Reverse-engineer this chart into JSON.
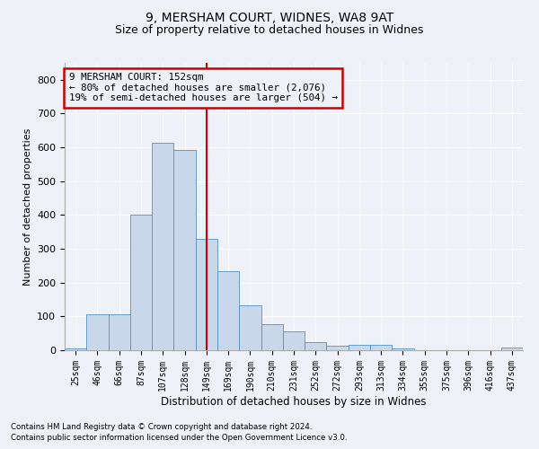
{
  "title1": "9, MERSHAM COURT, WIDNES, WA8 9AT",
  "title2": "Size of property relative to detached houses in Widnes",
  "xlabel": "Distribution of detached houses by size in Widnes",
  "ylabel": "Number of detached properties",
  "footnote1": "Contains HM Land Registry data © Crown copyright and database right 2024.",
  "footnote2": "Contains public sector information licensed under the Open Government Licence v3.0.",
  "bar_labels": [
    "25sqm",
    "46sqm",
    "66sqm",
    "87sqm",
    "107sqm",
    "128sqm",
    "149sqm",
    "169sqm",
    "190sqm",
    "210sqm",
    "231sqm",
    "252sqm",
    "272sqm",
    "293sqm",
    "313sqm",
    "334sqm",
    "355sqm",
    "375sqm",
    "396sqm",
    "416sqm",
    "437sqm"
  ],
  "bar_values": [
    5,
    107,
    107,
    402,
    614,
    592,
    330,
    235,
    133,
    78,
    55,
    25,
    13,
    15,
    17,
    5,
    0,
    0,
    0,
    0,
    7
  ],
  "bar_color": "#c8d8ea",
  "bar_edge_color": "#5590c0",
  "bar_width": 1.0,
  "redline_index": 6,
  "annotation_title": "9 MERSHAM COURT: 152sqm",
  "annotation_line1": "← 80% of detached houses are smaller (2,076)",
  "annotation_line2": "19% of semi-detached houses are larger (504) →",
  "annotation_box_color": "#cc0000",
  "ylim": [
    0,
    850
  ],
  "yticks": [
    0,
    100,
    200,
    300,
    400,
    500,
    600,
    700,
    800
  ],
  "bg_color": "#eef2f8",
  "grid_color": "#ffffff",
  "title_fontsize": 10,
  "subtitle_fontsize": 9,
  "axis_fontsize": 8
}
